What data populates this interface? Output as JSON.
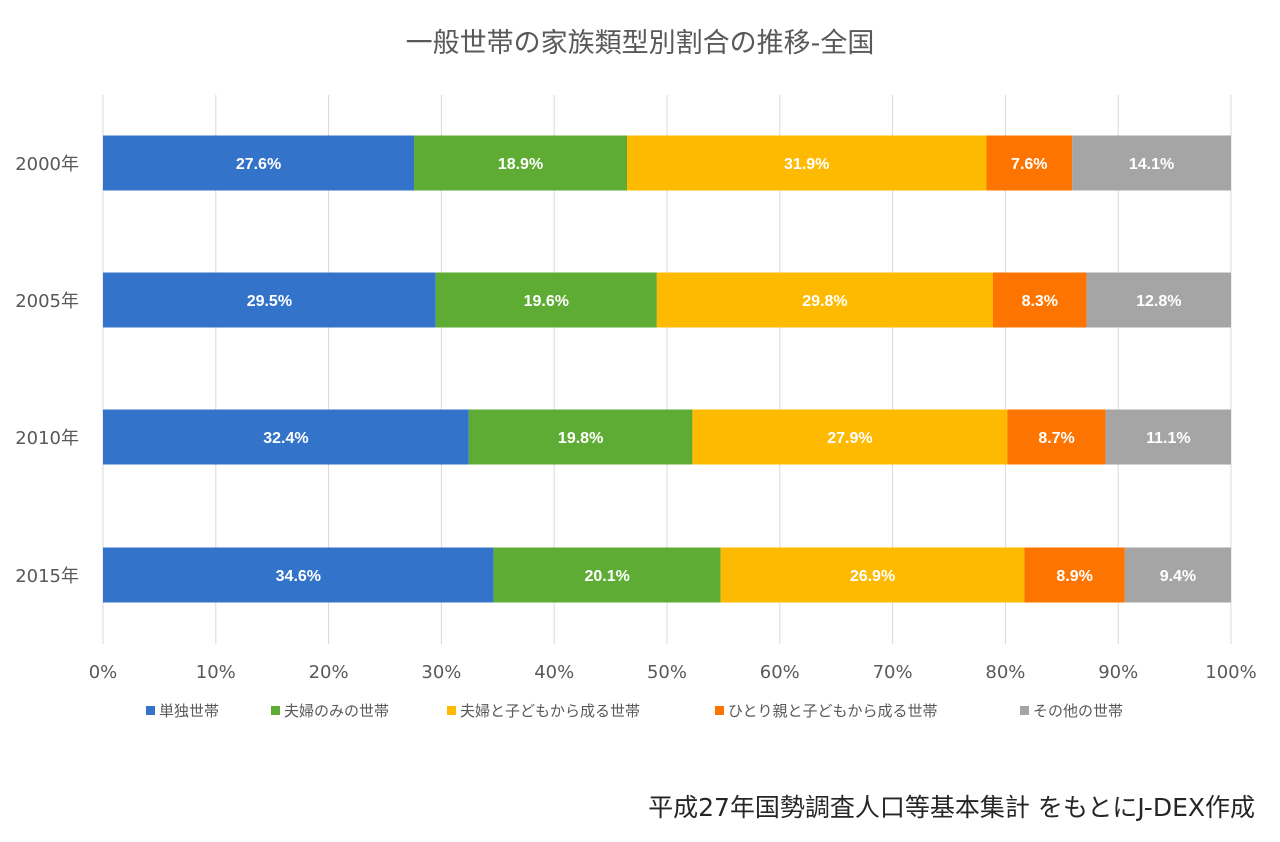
{
  "chart_data": {
    "type": "bar",
    "orientation": "horizontal",
    "stacked": "percent",
    "title": "一般世帯の家族類型別割合の推移-全国",
    "categories": [
      "2000年",
      "2005年",
      "2010年",
      "2015年"
    ],
    "series": [
      {
        "name": "単独世帯",
        "color": "#3473CA",
        "values": [
          27.6,
          29.5,
          32.4,
          34.6
        ],
        "labels": [
          "27.6%",
          "29.5%",
          "32.4%",
          "34.6%"
        ]
      },
      {
        "name": "夫婦のみの世帯",
        "color": "#5EAC34",
        "values": [
          18.9,
          19.6,
          19.8,
          20.1
        ],
        "labels": [
          "18.9%",
          "19.6%",
          "19.8%",
          "20.1%"
        ]
      },
      {
        "name": "夫婦と子どもから成る世帯",
        "color": "#FDBA00",
        "values": [
          31.9,
          29.8,
          27.9,
          26.9
        ],
        "labels": [
          "31.9%",
          "29.8%",
          "27.9%",
          "26.9%"
        ]
      },
      {
        "name": "ひとり親と子どもから成る世帯",
        "color": "#FD7500",
        "values": [
          7.6,
          8.3,
          8.7,
          8.9
        ],
        "labels": [
          "7.6%",
          "8.3%",
          "8.7%",
          "8.9%"
        ]
      },
      {
        "name": "その他の世帯",
        "color": "#A5A5A5",
        "values": [
          14.1,
          12.8,
          11.1,
          9.4
        ],
        "labels": [
          "14.1%",
          "12.8%",
          "11.1%",
          "9.4%"
        ]
      }
    ],
    "xlim": [
      0,
      100
    ],
    "xticks": [
      0,
      10,
      20,
      30,
      40,
      50,
      60,
      70,
      80,
      90,
      100
    ],
    "xtick_labels": [
      "0%",
      "10%",
      "20%",
      "30%",
      "40%",
      "50%",
      "60%",
      "70%",
      "80%",
      "90%",
      "100%"
    ],
    "grid": true,
    "legend_position": "bottom",
    "source": "平成27年国勢調査人口等基本集計 をもとにJ-DEX作成"
  }
}
